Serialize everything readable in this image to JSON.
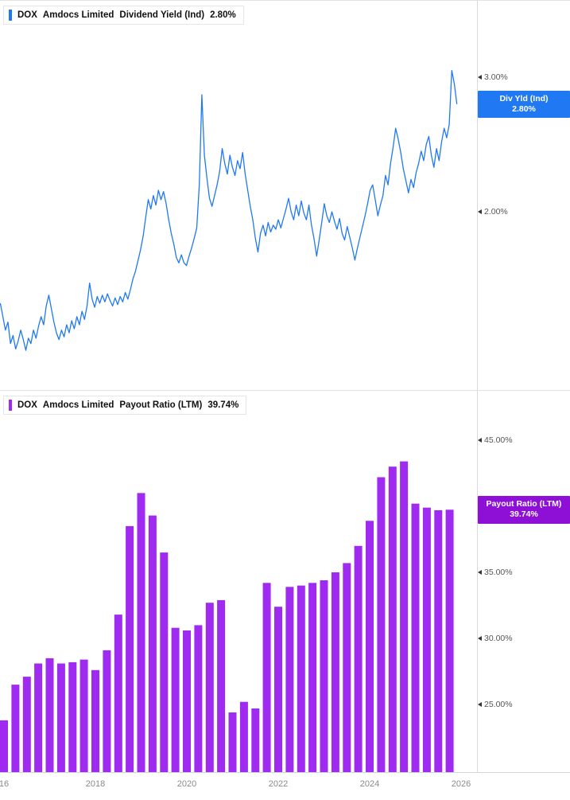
{
  "panels": [
    {
      "legend": {
        "symbol": "DOX",
        "name": "Amdocs Limited",
        "metric": "Dividend Yield (Ind)",
        "value": "2.80%"
      },
      "badge": {
        "line1": "Div Yld (Ind)",
        "line2": "2.80%",
        "color": "#2079f2"
      },
      "y_ticks": [
        {
          "value": 3.0,
          "label": "3.00%"
        },
        {
          "value": 2.0,
          "label": "2.00%"
        }
      ]
    },
    {
      "legend": {
        "symbol": "DOX",
        "name": "Amdocs Limited",
        "metric": "Payout Ratio (LTM)",
        "value": "39.74%"
      },
      "badge": {
        "line1": "Payout Ratio (LTM)",
        "line2": "39.74%",
        "color": "#8e0fd6"
      },
      "y_ticks": [
        {
          "value": 45.0,
          "label": "45.00%"
        },
        {
          "value": 40.0,
          "label": "40.00%"
        },
        {
          "value": 35.0,
          "label": "35.00%"
        },
        {
          "value": 30.0,
          "label": "30.00%"
        },
        {
          "value": 25.0,
          "label": "25.00%"
        }
      ]
    }
  ],
  "x_axis": {
    "ticks": [
      {
        "year": 2016,
        "label": "16"
      },
      {
        "year": 2018,
        "label": "2018"
      },
      {
        "year": 2020,
        "label": "2020"
      },
      {
        "year": 2022,
        "label": "2022"
      },
      {
        "year": 2024,
        "label": "2024"
      },
      {
        "year": 2026,
        "label": "2026"
      }
    ]
  },
  "chart_data": [
    {
      "type": "line",
      "title": "DOX Amdocs Limited Dividend Yield (Ind)",
      "series_name": "Div Yld (Ind)",
      "unit": "%",
      "color": "#2079f2",
      "x_start": 2015.92,
      "x_step": 0.0558,
      "xlim": [
        2015.8,
        2026.3
      ],
      "ylim": [
        0.69,
        3.57
      ],
      "last_value": 2.8,
      "values": [
        1.32,
        1.22,
        1.12,
        1.18,
        1.02,
        1.08,
        0.98,
        1.04,
        1.12,
        1.05,
        0.97,
        1.06,
        1.02,
        1.12,
        1.06,
        1.15,
        1.22,
        1.16,
        1.3,
        1.38,
        1.28,
        1.18,
        1.1,
        1.05,
        1.12,
        1.07,
        1.16,
        1.1,
        1.19,
        1.13,
        1.22,
        1.16,
        1.26,
        1.2,
        1.3,
        1.47,
        1.35,
        1.29,
        1.37,
        1.32,
        1.38,
        1.33,
        1.39,
        1.34,
        1.3,
        1.36,
        1.31,
        1.37,
        1.33,
        1.4,
        1.35,
        1.42,
        1.5,
        1.56,
        1.64,
        1.72,
        1.82,
        1.96,
        2.09,
        2.02,
        2.12,
        2.05,
        2.16,
        2.09,
        2.15,
        2.06,
        1.94,
        1.84,
        1.76,
        1.66,
        1.62,
        1.68,
        1.62,
        1.6,
        1.67,
        1.73,
        1.8,
        1.88,
        2.2,
        2.87,
        2.42,
        2.25,
        2.1,
        2.04,
        2.12,
        2.2,
        2.3,
        2.47,
        2.36,
        2.28,
        2.42,
        2.33,
        2.27,
        2.38,
        2.32,
        2.44,
        2.28,
        2.16,
        2.04,
        1.94,
        1.8,
        1.7,
        1.84,
        1.9,
        1.82,
        1.92,
        1.85,
        1.9,
        1.87,
        1.94,
        1.88,
        1.95,
        2.02,
        2.1,
        2.0,
        1.94,
        2.05,
        1.97,
        2.08,
        1.99,
        1.94,
        2.05,
        1.9,
        1.8,
        1.67,
        1.79,
        1.92,
        2.06,
        1.97,
        1.92,
        2.0,
        1.93,
        1.87,
        1.95,
        1.84,
        1.79,
        1.89,
        1.81,
        1.73,
        1.64,
        1.73,
        1.81,
        1.89,
        1.97,
        2.06,
        2.16,
        2.2,
        2.09,
        1.97,
        2.05,
        2.12,
        2.27,
        2.2,
        2.36,
        2.48,
        2.62,
        2.54,
        2.44,
        2.32,
        2.23,
        2.14,
        2.24,
        2.18,
        2.29,
        2.36,
        2.45,
        2.38,
        2.5,
        2.56,
        2.42,
        2.33,
        2.47,
        2.38,
        2.52,
        2.62,
        2.55,
        2.65,
        3.05,
        2.95,
        2.8
      ]
    },
    {
      "type": "bar",
      "title": "DOX Amdocs Limited Payout Ratio (LTM)",
      "series_name": "Payout Ratio (LTM)",
      "unit": "%",
      "color": "#a02bf0",
      "x_start": 2016.0,
      "x_step": 0.25,
      "xlim": [
        2015.8,
        2026.3
      ],
      "ylim": [
        19.8,
        48.7
      ],
      "last_value": 39.74,
      "values": [
        23.8,
        26.5,
        27.1,
        28.1,
        28.5,
        28.1,
        28.2,
        28.4,
        27.6,
        29.1,
        31.8,
        38.5,
        41.0,
        39.3,
        36.5,
        30.8,
        30.6,
        31.0,
        32.7,
        32.9,
        24.4,
        25.2,
        24.7,
        34.2,
        32.4,
        33.9,
        34.0,
        34.2,
        34.4,
        35.0,
        35.7,
        37.0,
        38.9,
        42.2,
        43.0,
        43.4,
        40.2,
        39.9,
        39.7,
        39.74
      ]
    }
  ]
}
